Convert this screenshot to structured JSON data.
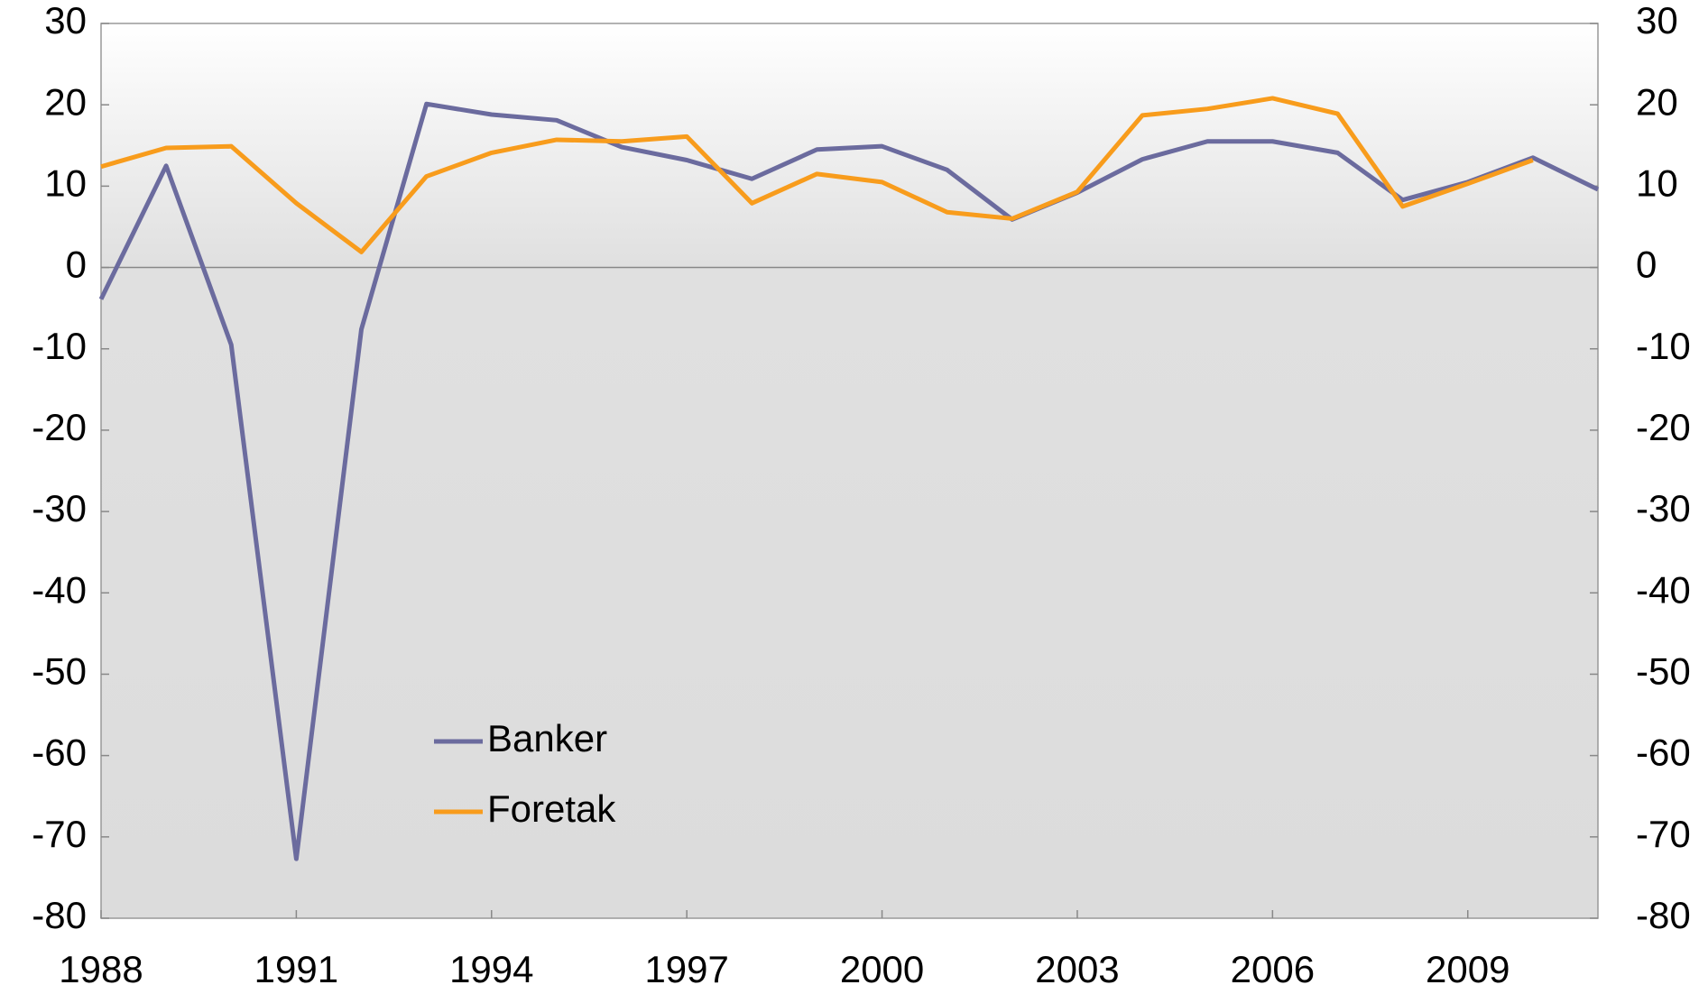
{
  "chart_data": {
    "type": "line",
    "x": [
      1988,
      1989,
      1990,
      1991,
      1992,
      1993,
      1994,
      1995,
      1996,
      1997,
      1998,
      1999,
      2000,
      2001,
      2002,
      2003,
      2004,
      2005,
      2006,
      2007,
      2008,
      2009,
      2010,
      2011
    ],
    "series": [
      {
        "name": "Banker",
        "color": "#6b6b9e",
        "values": [
          -3.9,
          12.5,
          -9.5,
          -72.7,
          -7.6,
          20.1,
          18.8,
          18.1,
          14.8,
          13.2,
          10.9,
          14.5,
          14.9,
          12.0,
          5.9,
          9.2,
          13.3,
          15.5,
          15.5,
          14.1,
          8.3,
          10.5,
          13.5,
          9.6
        ]
      },
      {
        "name": "Foretak",
        "color": "#f89c1c",
        "values": [
          12.4,
          14.7,
          14.9,
          7.9,
          1.9,
          11.2,
          14.1,
          15.7,
          15.5,
          16.1,
          7.9,
          11.5,
          10.5,
          6.8,
          6.0,
          9.3,
          18.7,
          19.5,
          20.8,
          18.9,
          7.5,
          10.3,
          13.2,
          null
        ]
      }
    ],
    "xlim": [
      1988,
      2011
    ],
    "xticks": [
      1988,
      1991,
      1994,
      1997,
      2000,
      2003,
      2006,
      2009
    ],
    "ylim": [
      -80,
      30
    ],
    "yticks": [
      -80,
      -70,
      -60,
      -50,
      -40,
      -30,
      -20,
      -10,
      0,
      10,
      20,
      30
    ],
    "y2lim": [
      -80,
      30
    ],
    "y2ticks": [
      -80,
      -70,
      -60,
      -50,
      -40,
      -30,
      -20,
      -10,
      0,
      10,
      20,
      30
    ],
    "grid": false
  }
}
